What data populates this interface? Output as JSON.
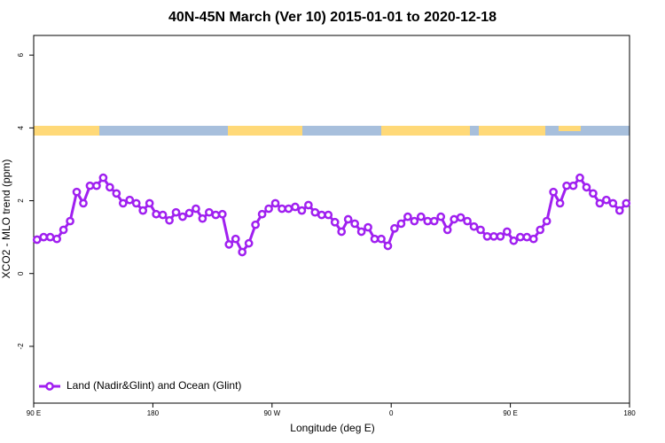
{
  "chart_data": {
    "type": "line",
    "title": "40N-45N March (Ver 10)   2015-01-01 to 2020-12-18",
    "x_label": "Longitude (deg E)",
    "y_label": "XCO2 - MLO trend (ppm)",
    "x": [
      92.5,
      97.5,
      102.5,
      107.5,
      112.5,
      117.5,
      122.5,
      127.5,
      132.5,
      137.5,
      142.5,
      147.5,
      152.5,
      157.5,
      162.5,
      167.5,
      172.5,
      177.5,
      182.5,
      187.5,
      192.5,
      197.5,
      202.5,
      207.5,
      212.5,
      217.5,
      222.5,
      227.5,
      232.5,
      237.5,
      242.5,
      247.5,
      252.5,
      257.5,
      262.5,
      267.5,
      272.5,
      277.5,
      282.5,
      287.5,
      292.5,
      297.5,
      302.5,
      307.5,
      312.5,
      317.5,
      322.5,
      327.5,
      332.5,
      337.5,
      342.5,
      347.5,
      352.5,
      357.5,
      362.5,
      367.5,
      372.5,
      377.5,
      382.5,
      387.5,
      392.5,
      397.5,
      402.5,
      407.5,
      412.5,
      417.5,
      422.5,
      427.5,
      432.5,
      437.5,
      442.5,
      447.5,
      452.5,
      457.5,
      462.5,
      467.5,
      472.5,
      477.5,
      482.5,
      487.5,
      492.5,
      497.5,
      502.5,
      507.5,
      512.5,
      517.5,
      522.5,
      527.5,
      532.5,
      537.5
    ],
    "series": [
      {
        "name": "Land (Nadir&Glint) and Ocean (Glint)",
        "color": "#a020f0",
        "values": [
          0.93,
          1.0,
          1.0,
          0.95,
          1.2,
          1.44,
          2.24,
          1.93,
          2.41,
          2.41,
          2.63,
          2.37,
          2.2,
          1.93,
          2.02,
          1.93,
          1.73,
          1.93,
          1.63,
          1.61,
          1.46,
          1.68,
          1.56,
          1.66,
          1.78,
          1.51,
          1.68,
          1.61,
          1.63,
          0.8,
          0.95,
          0.59,
          0.83,
          1.34,
          1.63,
          1.78,
          1.93,
          1.78,
          1.78,
          1.83,
          1.73,
          1.88,
          1.68,
          1.61,
          1.61,
          1.41,
          1.15,
          1.49,
          1.37,
          1.15,
          1.27,
          0.95,
          0.95,
          0.76,
          1.24,
          1.37,
          1.56,
          1.44,
          1.56,
          1.44,
          1.44,
          1.56,
          1.2,
          1.49,
          1.54,
          1.44,
          1.29,
          1.2,
          1.02,
          1.02,
          1.02,
          1.15,
          0.9,
          1.0,
          1.0,
          0.95,
          1.2,
          1.44,
          2.24,
          1.93,
          2.41,
          2.41,
          2.63,
          2.37,
          2.2,
          1.93,
          2.02,
          1.93,
          1.73,
          1.93
        ]
      }
    ],
    "xlim": [
      90,
      540
    ],
    "xticks": [
      {
        "value": 90,
        "label": "90 E"
      },
      180,
      {
        "value": 270,
        "label": "90 W"
      },
      {
        "value": 360,
        "label": "0"
      },
      {
        "value": 450,
        "label": "90 E"
      },
      {
        "value": 540,
        "label": "180"
      }
    ],
    "ylim": [
      -3.56,
      6.54
    ],
    "yticks": [
      -2,
      0,
      2,
      4,
      6
    ],
    "legend": "bottomleft"
  }
}
